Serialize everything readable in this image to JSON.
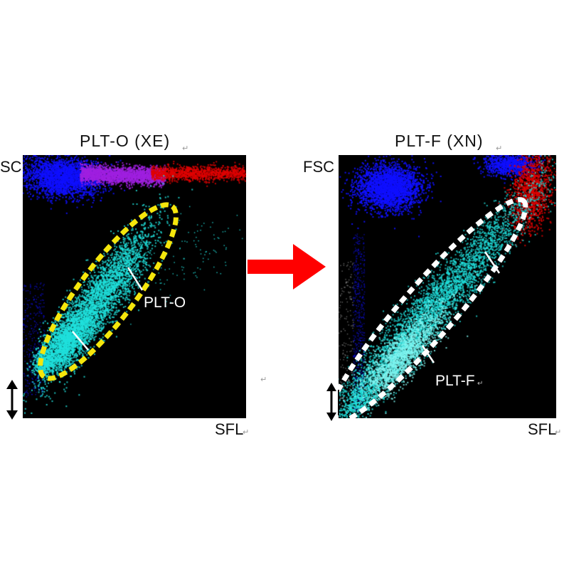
{
  "colors": {
    "background": "#000000",
    "gate_left": "#f5e60c",
    "gate_right": "#ffffff",
    "transition_arrow": "#ff0000",
    "plt_dots": "#20e0dc",
    "rbc_dots": "#1010ff",
    "purple_dots": "#a020e0",
    "red_dots": "#e00000"
  },
  "transition_arrow": {
    "icon": "right-arrow"
  },
  "chart_data": [
    {
      "type": "scatter",
      "title": "PLT-O (XE)",
      "xlabel": "SFL",
      "ylabel": "SC",
      "grid": false,
      "gate": {
        "label": "PLT-O",
        "style": "dashed-ellipse",
        "color": "#f5e60c"
      },
      "clusters": [
        {
          "name": "PLT-O",
          "color": "#20e0dc"
        },
        {
          "name": "",
          "color": "#1010ff"
        },
        {
          "name": "",
          "color": "#a020e0"
        },
        {
          "name": "",
          "color": "#e00000"
        }
      ],
      "scale_icon": "double-arrow-vertical"
    },
    {
      "type": "scatter",
      "title": "PLT-F (XN)",
      "xlabel": "SFL",
      "ylabel": "FSC",
      "grid": false,
      "gate": {
        "label": "PLT-F",
        "style": "dashed-ellipse",
        "color": "#ffffff"
      },
      "clusters": [
        {
          "name": "PLT-F",
          "color": "#20e0dc"
        },
        {
          "name": "",
          "color": "#1010ff"
        },
        {
          "name": "",
          "color": "#e00000"
        }
      ],
      "scale_icon": "double-arrow-vertical"
    }
  ]
}
